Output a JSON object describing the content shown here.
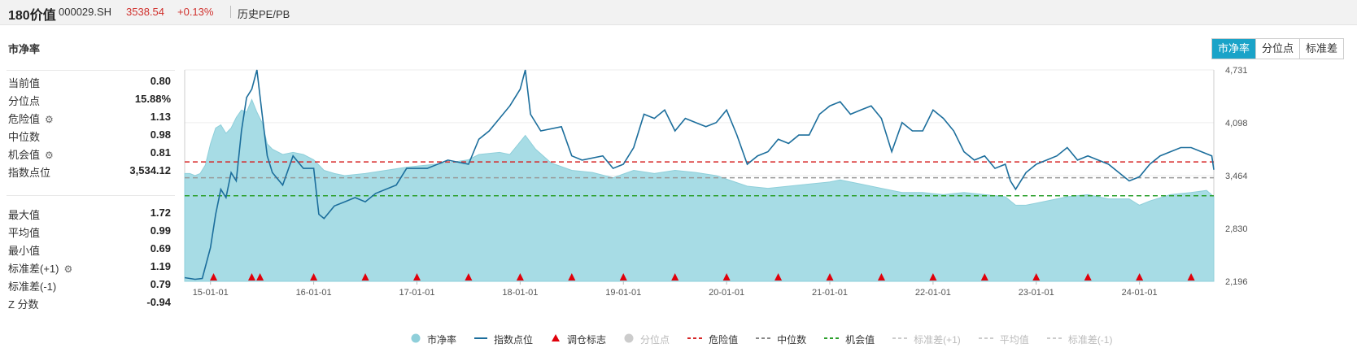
{
  "header": {
    "name": "180价值",
    "code": "000029.SH",
    "price": "3538.54",
    "change": "+0.13%",
    "history_link": "历史PE/PB"
  },
  "section_title": "市净率",
  "tabs": [
    {
      "label": "市净率",
      "active": true
    },
    {
      "label": "分位点",
      "active": false
    },
    {
      "label": "标准差",
      "active": false
    }
  ],
  "stats_top": [
    {
      "label": "当前值",
      "value": "0.80",
      "gear": false
    },
    {
      "label": "分位点",
      "value": "15.88%",
      "gear": false
    },
    {
      "label": "危险值",
      "value": "1.13",
      "gear": true
    },
    {
      "label": "中位数",
      "value": "0.98",
      "gear": false
    },
    {
      "label": "机会值",
      "value": "0.81",
      "gear": true
    },
    {
      "label": "指数点位",
      "value": "3,534.12",
      "gear": false
    }
  ],
  "stats_bottom": [
    {
      "label": "最大值",
      "value": "1.72",
      "gear": false
    },
    {
      "label": "平均值",
      "value": "0.99",
      "gear": false
    },
    {
      "label": "最小值",
      "value": "0.69",
      "gear": false
    },
    {
      "label": "标准差(+1)",
      "value": "1.19",
      "gear": true
    },
    {
      "label": "标准差(-1)",
      "value": "0.79",
      "gear": false
    },
    {
      "label": "Z 分数",
      "value": "-0.94",
      "gear": false
    }
  ],
  "colors": {
    "pb_fill": "#a7dce5",
    "pb_line": "#8fcfda",
    "index_line": "#1c6e9c",
    "danger": "#d62728",
    "median": "#999999",
    "opportunity": "#2ca02c",
    "marker": "#e0000b",
    "accent": "#1aa3c8"
  },
  "chart_data": {
    "type": "area",
    "left_axis": {
      "ticks": [
        "2",
        "1",
        "0"
      ],
      "range": [
        0,
        2
      ]
    },
    "right_axis": {
      "ticks": [
        "4,731",
        "4,098",
        "3,464",
        "2,830",
        "2,196"
      ],
      "range": [
        2196,
        4731
      ]
    },
    "x_ticks": [
      "15-01-01",
      "16-01-01",
      "17-01-01",
      "18-01-01",
      "19-01-01",
      "20-01-01",
      "21-01-01",
      "22-01-01",
      "23-01-01",
      "24-01-01"
    ],
    "x_range": [
      2014.75,
      2024.72
    ],
    "reference_lines": {
      "danger": 1.13,
      "median": 0.98,
      "opportunity": 0.81
    },
    "series": [
      {
        "name": "市净率",
        "axis": "left",
        "points": [
          [
            2014.75,
            1.02
          ],
          [
            2014.8,
            1.02
          ],
          [
            2014.85,
            1.0
          ],
          [
            2014.9,
            1.02
          ],
          [
            2014.95,
            1.1
          ],
          [
            2015.0,
            1.3
          ],
          [
            2015.05,
            1.45
          ],
          [
            2015.1,
            1.48
          ],
          [
            2015.15,
            1.4
          ],
          [
            2015.2,
            1.45
          ],
          [
            2015.25,
            1.55
          ],
          [
            2015.3,
            1.62
          ],
          [
            2015.35,
            1.6
          ],
          [
            2015.4,
            1.72
          ],
          [
            2015.45,
            1.6
          ],
          [
            2015.5,
            1.5
          ],
          [
            2015.55,
            1.3
          ],
          [
            2015.6,
            1.25
          ],
          [
            2015.7,
            1.2
          ],
          [
            2015.8,
            1.22
          ],
          [
            2015.9,
            1.2
          ],
          [
            2016.0,
            1.15
          ],
          [
            2016.1,
            1.05
          ],
          [
            2016.2,
            1.02
          ],
          [
            2016.3,
            1.0
          ],
          [
            2016.5,
            1.02
          ],
          [
            2016.7,
            1.05
          ],
          [
            2016.9,
            1.08
          ],
          [
            2017.1,
            1.1
          ],
          [
            2017.3,
            1.12
          ],
          [
            2017.5,
            1.15
          ],
          [
            2017.6,
            1.2
          ],
          [
            2017.8,
            1.22
          ],
          [
            2017.9,
            1.2
          ],
          [
            2018.05,
            1.38
          ],
          [
            2018.15,
            1.25
          ],
          [
            2018.3,
            1.12
          ],
          [
            2018.5,
            1.05
          ],
          [
            2018.7,
            1.03
          ],
          [
            2018.9,
            0.98
          ],
          [
            2019.1,
            1.05
          ],
          [
            2019.3,
            1.02
          ],
          [
            2019.5,
            1.05
          ],
          [
            2019.7,
            1.03
          ],
          [
            2019.9,
            1.0
          ],
          [
            2020.05,
            0.95
          ],
          [
            2020.2,
            0.9
          ],
          [
            2020.4,
            0.88
          ],
          [
            2020.6,
            0.9
          ],
          [
            2020.8,
            0.92
          ],
          [
            2021.0,
            0.94
          ],
          [
            2021.1,
            0.96
          ],
          [
            2021.3,
            0.92
          ],
          [
            2021.5,
            0.88
          ],
          [
            2021.7,
            0.84
          ],
          [
            2021.9,
            0.84
          ],
          [
            2022.1,
            0.82
          ],
          [
            2022.3,
            0.84
          ],
          [
            2022.5,
            0.82
          ],
          [
            2022.7,
            0.8
          ],
          [
            2022.8,
            0.72
          ],
          [
            2022.9,
            0.72
          ],
          [
            2023.1,
            0.76
          ],
          [
            2023.3,
            0.8
          ],
          [
            2023.5,
            0.82
          ],
          [
            2023.7,
            0.78
          ],
          [
            2023.9,
            0.78
          ],
          [
            2024.0,
            0.72
          ],
          [
            2024.1,
            0.76
          ],
          [
            2024.3,
            0.82
          ],
          [
            2024.5,
            0.84
          ],
          [
            2024.65,
            0.86
          ],
          [
            2024.72,
            0.8
          ]
        ]
      },
      {
        "name": "指数点位",
        "axis": "right",
        "points": [
          [
            2014.75,
            2240
          ],
          [
            2014.85,
            2220
          ],
          [
            2014.92,
            2230
          ],
          [
            2015.0,
            2600
          ],
          [
            2015.05,
            3000
          ],
          [
            2015.1,
            3300
          ],
          [
            2015.15,
            3200
          ],
          [
            2015.2,
            3500
          ],
          [
            2015.25,
            3400
          ],
          [
            2015.3,
            4000
          ],
          [
            2015.35,
            4400
          ],
          [
            2015.4,
            4500
          ],
          [
            2015.45,
            4731
          ],
          [
            2015.5,
            4200
          ],
          [
            2015.55,
            3700
          ],
          [
            2015.6,
            3500
          ],
          [
            2015.7,
            3350
          ],
          [
            2015.8,
            3700
          ],
          [
            2015.9,
            3550
          ],
          [
            2016.0,
            3550
          ],
          [
            2016.05,
            3000
          ],
          [
            2016.1,
            2950
          ],
          [
            2016.2,
            3100
          ],
          [
            2016.3,
            3150
          ],
          [
            2016.4,
            3200
          ],
          [
            2016.5,
            3150
          ],
          [
            2016.6,
            3250
          ],
          [
            2016.8,
            3350
          ],
          [
            2016.9,
            3550
          ],
          [
            2017.1,
            3550
          ],
          [
            2017.3,
            3650
          ],
          [
            2017.5,
            3600
          ],
          [
            2017.6,
            3900
          ],
          [
            2017.7,
            4000
          ],
          [
            2017.9,
            4300
          ],
          [
            2018.0,
            4500
          ],
          [
            2018.05,
            4731
          ],
          [
            2018.1,
            4200
          ],
          [
            2018.2,
            4000
          ],
          [
            2018.4,
            4050
          ],
          [
            2018.5,
            3700
          ],
          [
            2018.6,
            3650
          ],
          [
            2018.8,
            3700
          ],
          [
            2018.9,
            3550
          ],
          [
            2019.0,
            3600
          ],
          [
            2019.1,
            3800
          ],
          [
            2019.2,
            4200
          ],
          [
            2019.3,
            4150
          ],
          [
            2019.4,
            4250
          ],
          [
            2019.5,
            4000
          ],
          [
            2019.6,
            4150
          ],
          [
            2019.7,
            4100
          ],
          [
            2019.8,
            4050
          ],
          [
            2019.9,
            4100
          ],
          [
            2020.0,
            4250
          ],
          [
            2020.1,
            3950
          ],
          [
            2020.2,
            3600
          ],
          [
            2020.3,
            3700
          ],
          [
            2020.4,
            3750
          ],
          [
            2020.5,
            3900
          ],
          [
            2020.6,
            3850
          ],
          [
            2020.7,
            3950
          ],
          [
            2020.8,
            3950
          ],
          [
            2020.9,
            4200
          ],
          [
            2021.0,
            4300
          ],
          [
            2021.1,
            4350
          ],
          [
            2021.2,
            4200
          ],
          [
            2021.3,
            4250
          ],
          [
            2021.4,
            4300
          ],
          [
            2021.5,
            4150
          ],
          [
            2021.6,
            3750
          ],
          [
            2021.7,
            4100
          ],
          [
            2021.8,
            4000
          ],
          [
            2021.9,
            4000
          ],
          [
            2022.0,
            4250
          ],
          [
            2022.1,
            4150
          ],
          [
            2022.2,
            4000
          ],
          [
            2022.3,
            3750
          ],
          [
            2022.4,
            3650
          ],
          [
            2022.5,
            3700
          ],
          [
            2022.6,
            3550
          ],
          [
            2022.7,
            3600
          ],
          [
            2022.75,
            3400
          ],
          [
            2022.8,
            3300
          ],
          [
            2022.9,
            3500
          ],
          [
            2023.0,
            3600
          ],
          [
            2023.1,
            3650
          ],
          [
            2023.2,
            3700
          ],
          [
            2023.3,
            3800
          ],
          [
            2023.4,
            3650
          ],
          [
            2023.5,
            3700
          ],
          [
            2023.6,
            3650
          ],
          [
            2023.7,
            3600
          ],
          [
            2023.8,
            3500
          ],
          [
            2023.9,
            3400
          ],
          [
            2024.0,
            3450
          ],
          [
            2024.1,
            3600
          ],
          [
            2024.2,
            3700
          ],
          [
            2024.3,
            3750
          ],
          [
            2024.4,
            3800
          ],
          [
            2024.5,
            3800
          ],
          [
            2024.6,
            3750
          ],
          [
            2024.7,
            3700
          ],
          [
            2024.72,
            3534
          ]
        ]
      }
    ],
    "rebalance_markers": [
      2015.03,
      2015.4,
      2015.48,
      2016.0,
      2016.5,
      2017.0,
      2017.5,
      2018.0,
      2018.5,
      2019.0,
      2019.5,
      2020.0,
      2020.5,
      2021.0,
      2021.5,
      2022.0,
      2022.5,
      2023.0,
      2023.5,
      2024.0,
      2024.5
    ]
  },
  "legend": [
    {
      "label": "市净率",
      "type": "circle",
      "color": "#8fcfda",
      "dim": false
    },
    {
      "label": "指数点位",
      "type": "line",
      "color": "#1c6e9c",
      "dim": false
    },
    {
      "label": "调仓标志",
      "type": "triangle",
      "color": "#e0000b",
      "dim": false
    },
    {
      "label": "分位点",
      "type": "circle",
      "color": "#cccccc",
      "dim": true
    },
    {
      "label": "危险值",
      "type": "dash",
      "color": "#d62728",
      "dim": false
    },
    {
      "label": "中位数",
      "type": "dash",
      "color": "#888888",
      "dim": false
    },
    {
      "label": "机会值",
      "type": "dash",
      "color": "#2ca02c",
      "dim": false
    },
    {
      "label": "标准差(+1)",
      "type": "dash",
      "color": "#cccccc",
      "dim": true
    },
    {
      "label": "平均值",
      "type": "dash",
      "color": "#cccccc",
      "dim": true
    },
    {
      "label": "标准差(-1)",
      "type": "dash",
      "color": "#cccccc",
      "dim": true
    }
  ]
}
